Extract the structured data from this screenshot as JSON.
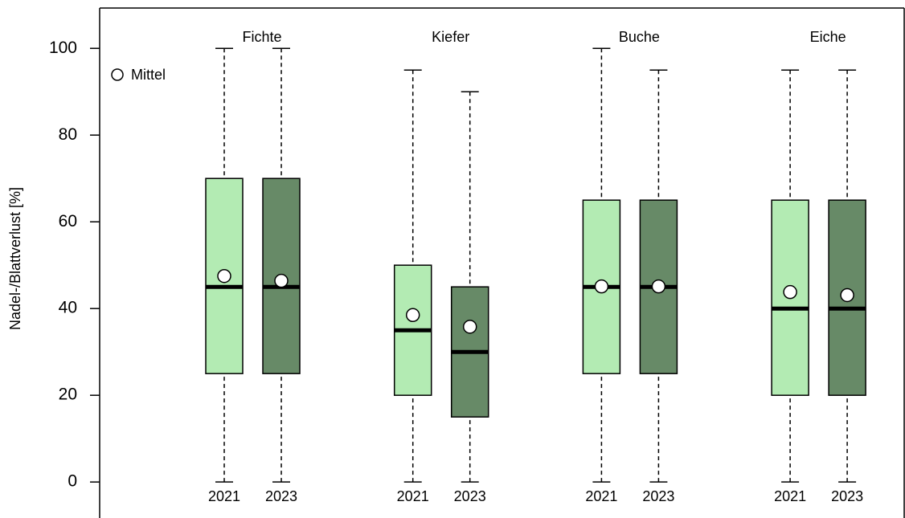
{
  "chart_data": {
    "type": "box",
    "y_label": "Nadel-/Blattverlust [%]",
    "ylim": [
      -8.3,
      109.3
    ],
    "yticks": [
      0,
      20,
      40,
      60,
      80,
      100
    ],
    "legend": {
      "label": "Mittel",
      "location": "upper left"
    },
    "groups": [
      {
        "name": "Fichte",
        "boxes": [
          {
            "label": "2021",
            "color": "#b3ebb3",
            "whisker_low": 0,
            "q1": 25,
            "median": 45,
            "q3": 70,
            "whisker_high": 100,
            "mean": 47.5
          },
          {
            "label": "2023",
            "color": "#678a67",
            "whisker_low": 0,
            "q1": 25,
            "median": 45,
            "q3": 70,
            "whisker_high": 100,
            "mean": 46.4
          }
        ]
      },
      {
        "name": "Kiefer",
        "boxes": [
          {
            "label": "2021",
            "color": "#b3ebb3",
            "whisker_low": 0,
            "q1": 20,
            "median": 35,
            "q3": 50,
            "whisker_high": 95,
            "mean": 38.5
          },
          {
            "label": "2023",
            "color": "#678a67",
            "whisker_low": 0,
            "q1": 15,
            "median": 30,
            "q3": 45,
            "whisker_high": 90,
            "mean": 35.8
          }
        ]
      },
      {
        "name": "Buche",
        "boxes": [
          {
            "label": "2021",
            "color": "#b3ebb3",
            "whisker_low": 0,
            "q1": 25,
            "median": 45,
            "q3": 65,
            "whisker_high": 100,
            "mean": 45.1
          },
          {
            "label": "2023",
            "color": "#678a67",
            "whisker_low": 0,
            "q1": 25,
            "median": 45,
            "q3": 65,
            "whisker_high": 95,
            "mean": 45.1
          }
        ]
      },
      {
        "name": "Eiche",
        "boxes": [
          {
            "label": "2021",
            "color": "#b3ebb3",
            "whisker_low": 0,
            "q1": 20,
            "median": 40,
            "q3": 65,
            "whisker_high": 95,
            "mean": 43.8
          },
          {
            "label": "2023",
            "color": "#678a67",
            "whisker_low": 0,
            "q1": 20,
            "median": 40,
            "q3": 65,
            "whisker_high": 95,
            "mean": 43.1
          }
        ]
      }
    ]
  }
}
